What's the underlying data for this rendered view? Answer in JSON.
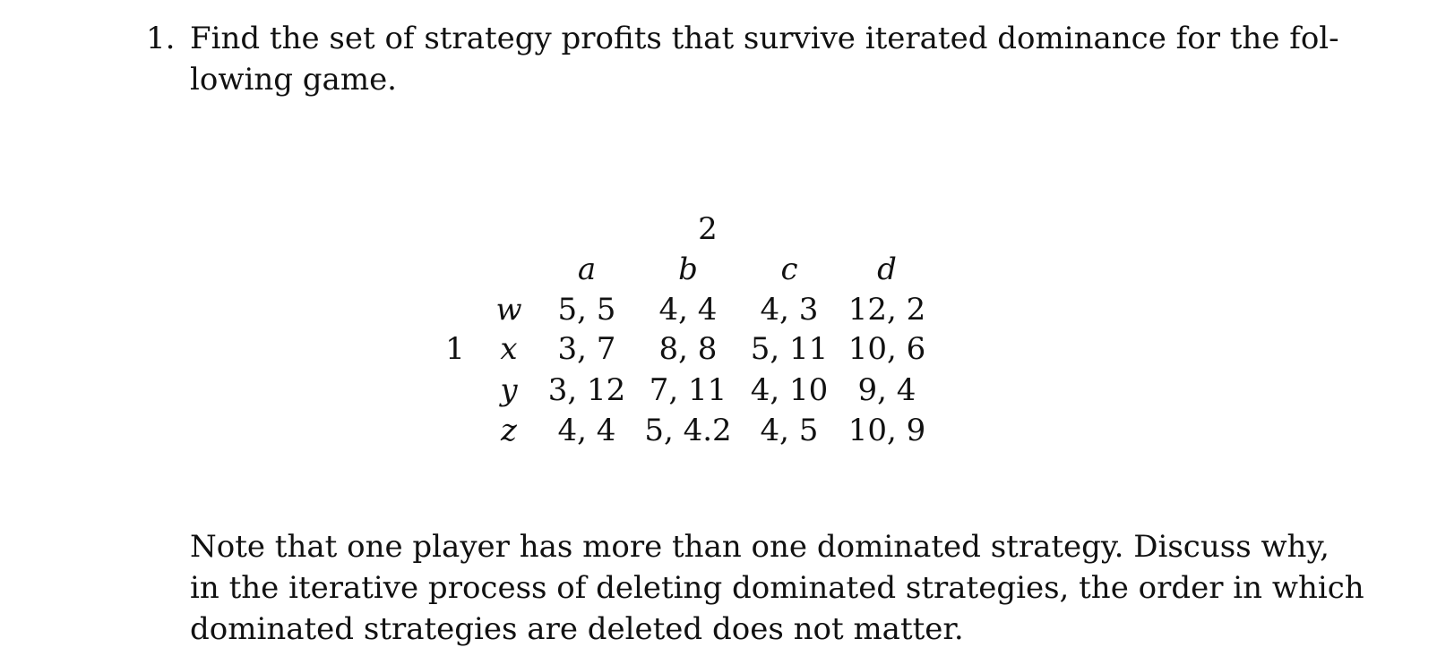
{
  "problem": {
    "number": "1.",
    "question_lines": [
      "Find the set of strategy profits that survive iterated dominance for the fol-",
      "lowing game."
    ]
  },
  "game": {
    "column_player": "2",
    "row_player": "1",
    "columns": [
      "a",
      "b",
      "c",
      "d"
    ],
    "rows": [
      {
        "strategy": "w",
        "payoffs": [
          "5, 5",
          "4, 4",
          "4, 3",
          "12, 2"
        ]
      },
      {
        "strategy": "x",
        "payoffs": [
          "3, 7",
          "8, 8",
          "5, 11",
          "10, 6"
        ]
      },
      {
        "strategy": "y",
        "payoffs": [
          "3, 12",
          "7, 11",
          "4, 10",
          "9, 4"
        ]
      },
      {
        "strategy": "z",
        "payoffs": [
          "4, 4",
          "5, 4.2",
          "4, 5",
          "10, 9"
        ]
      }
    ]
  },
  "note": {
    "lines": [
      "Note that one player has more than one dominated strategy. Discuss why,",
      "in the iterative process of deleting dominated strategies, the order in which",
      "dominated strategies are deleted does not matter."
    ]
  }
}
